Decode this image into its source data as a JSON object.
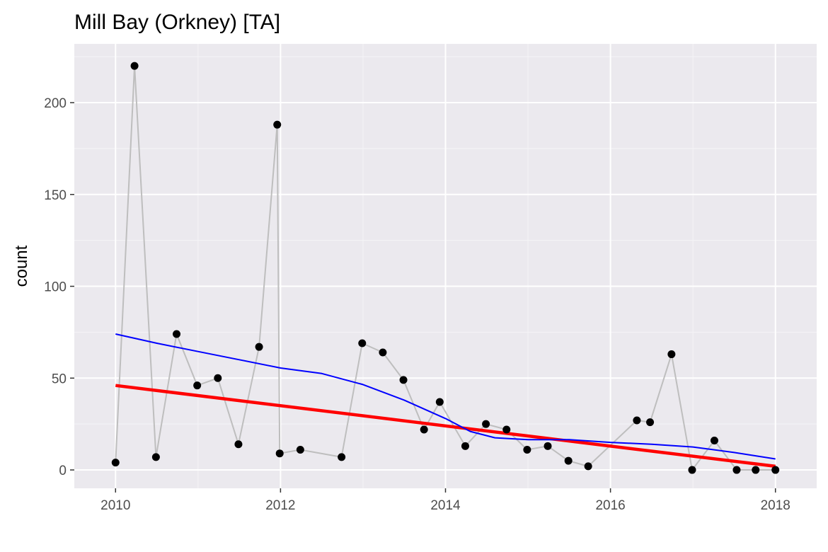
{
  "chart_data": {
    "type": "line",
    "title": "Mill Bay (Orkney)  [TA]",
    "xlabel": "",
    "ylabel": "count",
    "xlim": [
      2009.5,
      2018.5
    ],
    "ylim": [
      -10,
      232
    ],
    "x_ticks": [
      2010,
      2012,
      2014,
      2016,
      2018
    ],
    "y_ticks": [
      0,
      50,
      100,
      150,
      200
    ],
    "grid": true,
    "legend": "none",
    "series": [
      {
        "kind": "points-and-line",
        "colors": {
          "line": "#bebebe",
          "point": "#000000"
        },
        "x": [
          2010.0,
          2010.23,
          2010.49,
          2010.74,
          2010.99,
          2011.24,
          2011.49,
          2011.74,
          2011.96,
          2011.99,
          2012.24,
          2012.74,
          2012.99,
          2013.24,
          2013.49,
          2013.74,
          2013.93,
          2014.24,
          2014.49,
          2014.74,
          2014.99,
          2015.24,
          2015.49,
          2015.73,
          2016.32,
          2016.48,
          2016.74,
          2016.99,
          2017.26,
          2017.53,
          2017.76,
          2018.0
        ],
        "y": [
          4,
          220,
          7,
          74,
          46,
          50,
          14,
          67,
          188,
          9,
          11,
          7,
          69,
          64,
          49,
          22,
          37,
          13,
          25,
          22,
          11,
          13,
          5,
          2,
          27,
          26,
          63,
          0,
          16,
          0,
          0,
          0
        ]
      },
      {
        "kind": "linear-trend",
        "colors": {
          "line": "#ff0000"
        },
        "x": [
          2010.0,
          2018.0
        ],
        "y": [
          46,
          2
        ]
      },
      {
        "kind": "smooth",
        "colors": {
          "line": "#0000ff"
        },
        "x": [
          2010.0,
          2010.5,
          2011.0,
          2011.5,
          2012.0,
          2012.5,
          2013.0,
          2013.5,
          2014.0,
          2014.3,
          2014.6,
          2015.0,
          2015.5,
          2016.0,
          2016.5,
          2017.0,
          2017.5,
          2018.0
        ],
        "y": [
          74,
          69,
          64.5,
          60,
          55.5,
          52.5,
          46.5,
          38,
          28,
          21,
          17.5,
          16.5,
          16.5,
          15,
          14,
          12.5,
          9.5,
          6
        ]
      }
    ]
  },
  "colors": {
    "panel_background": "#ebe9ee",
    "grid_major": "#ffffff",
    "grid_minor": "#f5f4f7"
  }
}
